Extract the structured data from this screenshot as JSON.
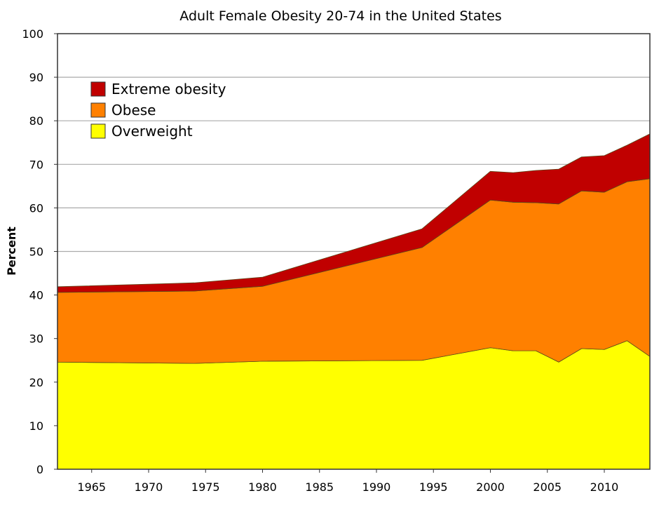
{
  "chart_data": {
    "type": "area",
    "stacked": true,
    "title": "Adult Female Obesity 20-74 in the United States",
    "xlabel": "",
    "ylabel": "Percent",
    "xlim": [
      1962,
      2014
    ],
    "ylim": [
      0,
      100
    ],
    "grid": true,
    "legend_position": "top-left",
    "x_ticks": [
      1965,
      1970,
      1975,
      1980,
      1985,
      1990,
      1995,
      2000,
      2005,
      2010
    ],
    "y_ticks": [
      0,
      10,
      20,
      30,
      40,
      50,
      60,
      70,
      80,
      90,
      100
    ],
    "x": [
      1962,
      1974,
      1980,
      1994,
      2000,
      2002,
      2004,
      2006,
      2008,
      2010,
      2012,
      2014
    ],
    "series": [
      {
        "name": "Overweight",
        "color": "#ffff00",
        "values": [
          24.6,
          24.3,
          24.8,
          25.0,
          27.9,
          27.2,
          27.2,
          24.6,
          27.7,
          27.5,
          29.5,
          25.9
        ]
      },
      {
        "name": "Obese",
        "color": "#ff8000",
        "values": [
          16.0,
          16.6,
          17.2,
          25.9,
          33.9,
          34.1,
          34.0,
          36.3,
          36.2,
          36.1,
          36.5,
          40.8
        ]
      },
      {
        "name": "Extreme obesity",
        "color": "#c00000",
        "values": [
          1.3,
          1.9,
          2.1,
          4.3,
          6.6,
          6.8,
          7.4,
          8.0,
          7.8,
          8.4,
          8.4,
          10.3
        ]
      }
    ],
    "legend_order": [
      "Extreme obesity",
      "Obese",
      "Overweight"
    ]
  }
}
